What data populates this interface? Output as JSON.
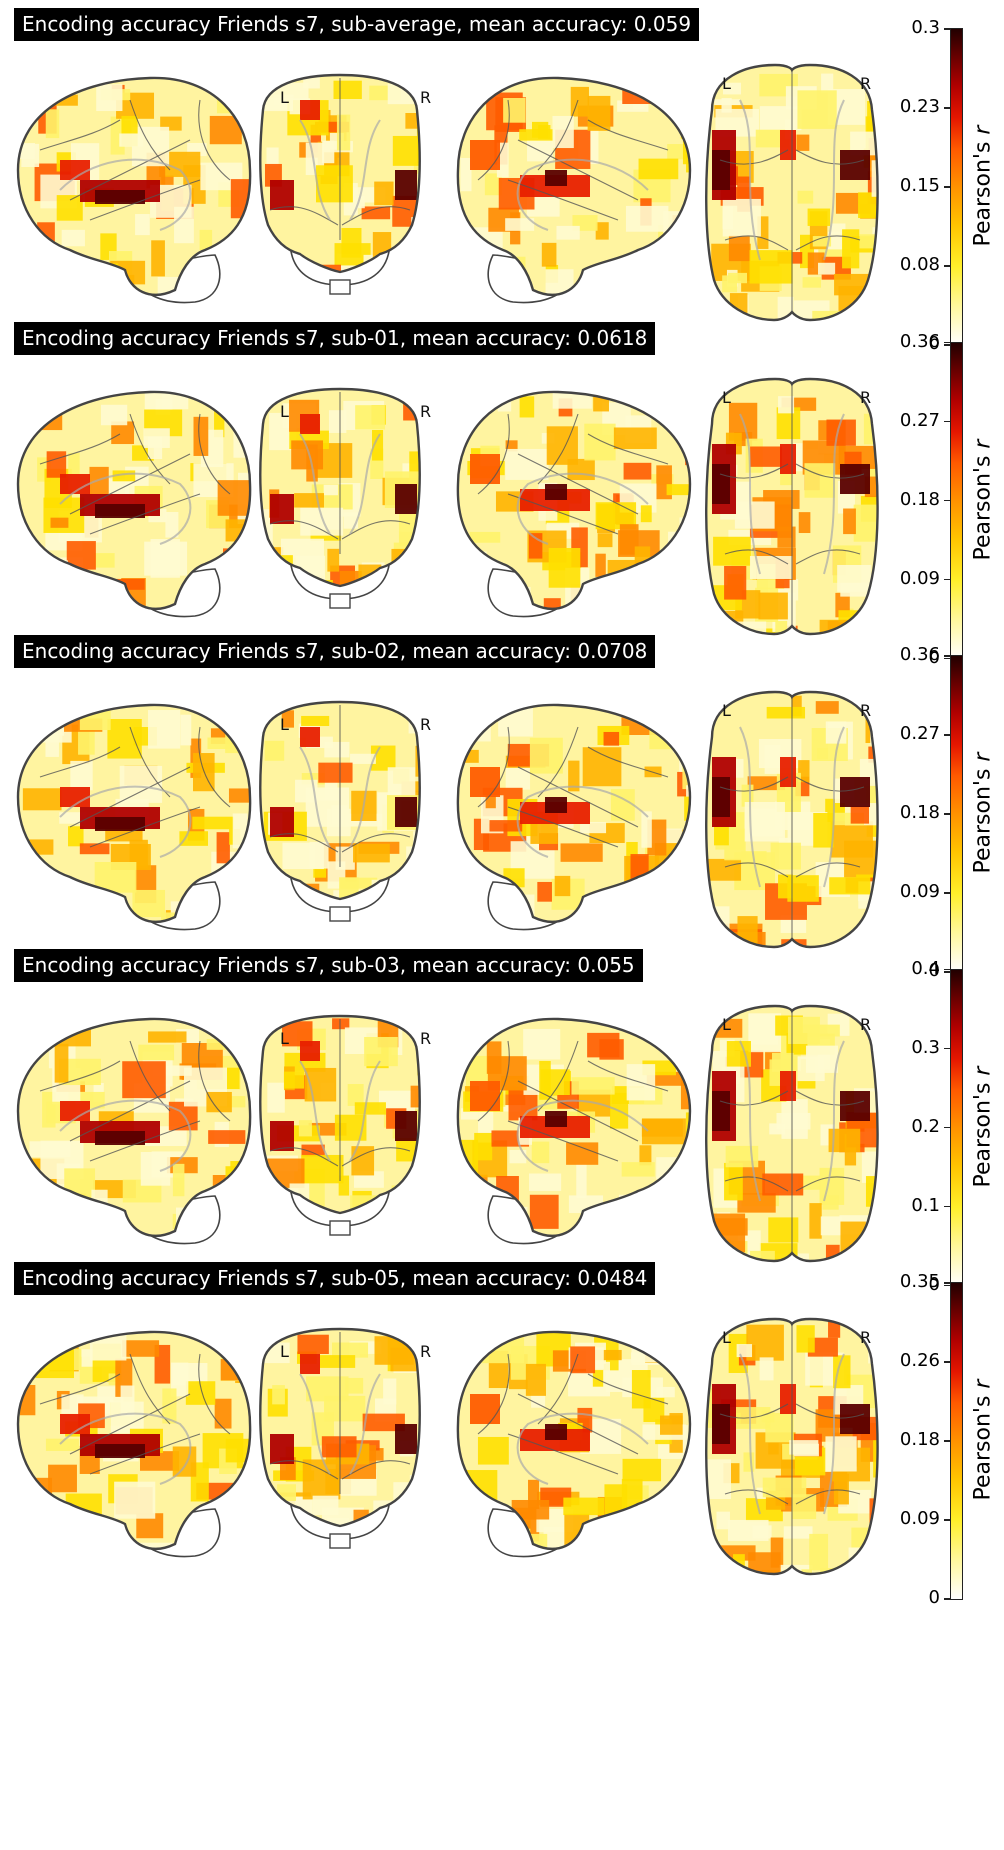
{
  "panels": [
    {
      "title": "Encoding accuracy Friends s7, sub-average, mean accuracy: 0.059",
      "ticks": [
        "0.3",
        "0.23",
        "0.15",
        "0.08",
        "0"
      ]
    },
    {
      "title": "Encoding accuracy Friends s7, sub-01, mean accuracy: 0.0618",
      "ticks": [
        "0.36",
        "0.27",
        "0.18",
        "0.09",
        "0"
      ]
    },
    {
      "title": "Encoding accuracy Friends s7, sub-02, mean accuracy: 0.0708",
      "ticks": [
        "0.36",
        "0.27",
        "0.18",
        "0.09",
        "0"
      ]
    },
    {
      "title": "Encoding accuracy Friends s7, sub-03, mean accuracy: 0.055",
      "ticks": [
        "0.4",
        "0.3",
        "0.2",
        "0.1",
        "0"
      ]
    },
    {
      "title": "Encoding accuracy Friends s7, sub-05, mean accuracy: 0.0484",
      "ticks": [
        "0.35",
        "0.26",
        "0.18",
        "0.09",
        "0"
      ]
    }
  ],
  "colorbar_label_prefix": "Pearson's ",
  "colorbar_label_var": "r",
  "hemisphere_left": "L",
  "hemisphere_right": "R",
  "colormap": "cold_hot (positive half)"
}
